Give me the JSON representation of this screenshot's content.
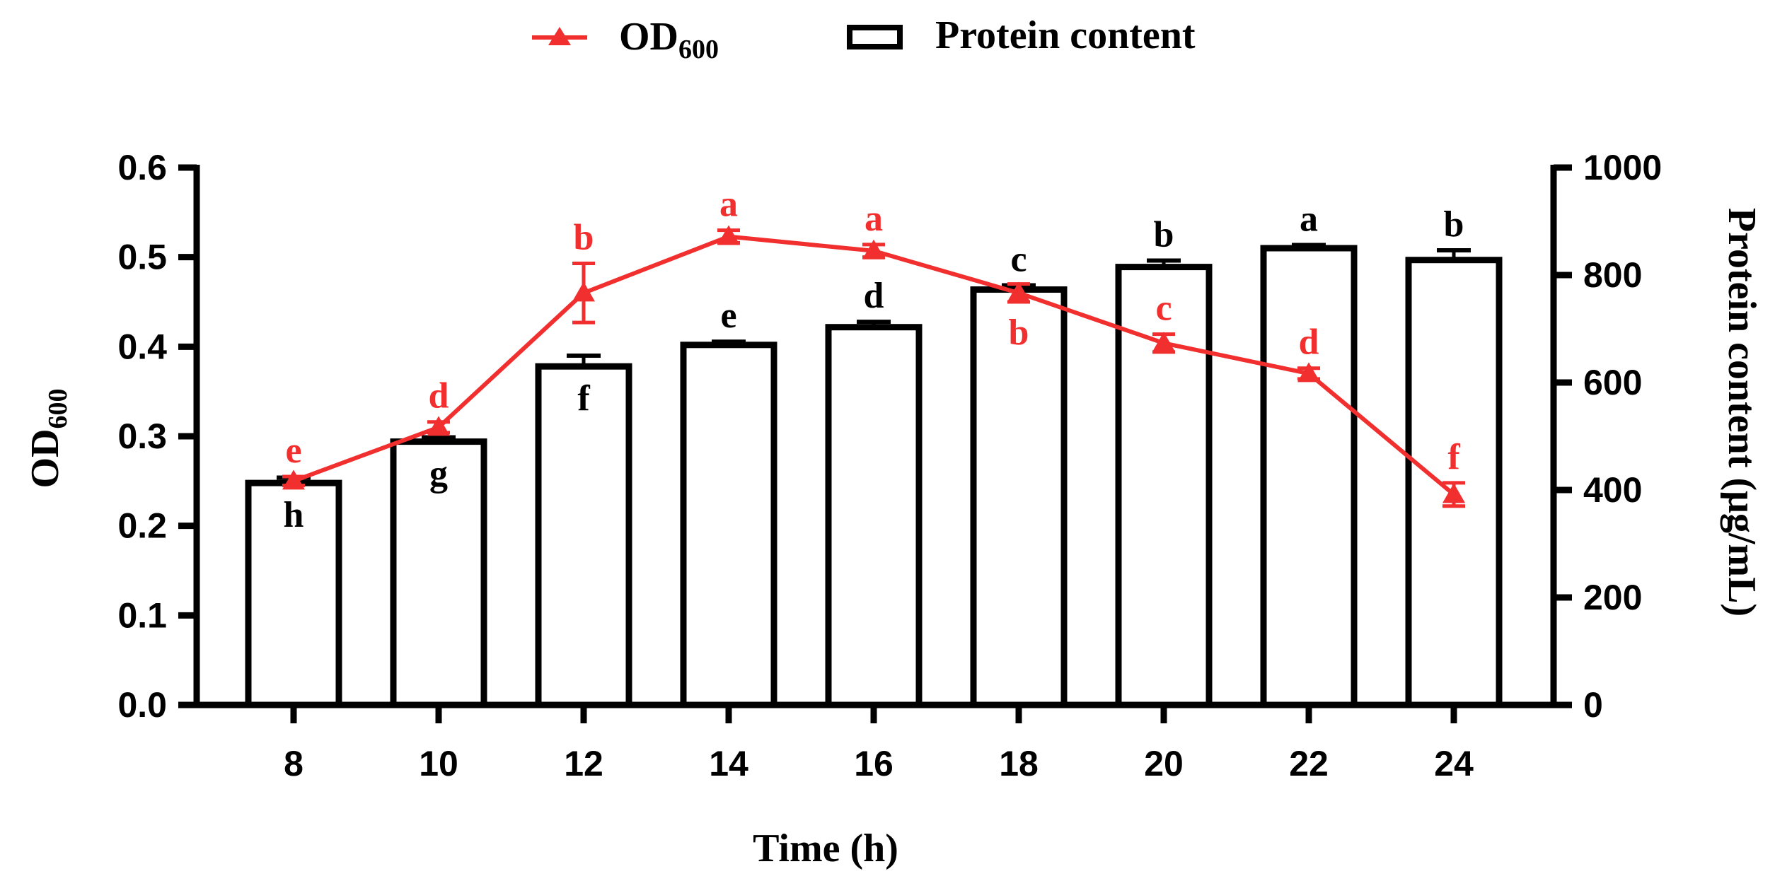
{
  "chart_data": {
    "type": "bar",
    "title": "",
    "xlabel": "Time (h)",
    "ylabel_left": "OD",
    "ylabel_left_sub": "600",
    "ylabel_right": "Protein content (μg/mL)",
    "categories": [
      "8",
      "10",
      "12",
      "14",
      "16",
      "18",
      "20",
      "22",
      "24"
    ],
    "y_left": {
      "min": 0,
      "max": 0.6,
      "ticks": [
        0.0,
        0.1,
        0.2,
        0.3,
        0.4,
        0.5,
        0.6
      ],
      "tick_labels": [
        "0.0",
        "0.1",
        "0.2",
        "0.3",
        "0.4",
        "0.5",
        "0.6"
      ]
    },
    "y_right": {
      "min": 0,
      "max": 1000,
      "ticks": [
        0,
        200,
        400,
        600,
        800,
        1000
      ],
      "tick_labels": [
        "0",
        "200",
        "400",
        "600",
        "800",
        "1000"
      ]
    },
    "legend": {
      "placement": "top-center",
      "items": [
        {
          "label": "OD",
          "sub": "600",
          "kind": "line-triangle"
        },
        {
          "label": "Protein content",
          "kind": "bar"
        }
      ]
    },
    "series": [
      {
        "name": "Protein content",
        "kind": "bar",
        "axis": "right",
        "color": "#000000",
        "values": [
          413,
          490,
          630,
          670,
          703,
          773,
          815,
          850,
          828
        ],
        "errors": [
          10,
          8,
          20,
          6,
          10,
          8,
          12,
          6,
          18
        ],
        "letters": [
          "h",
          "g",
          "f",
          "e",
          "d",
          "c",
          "b",
          "a",
          "b"
        ]
      },
      {
        "name": "OD600",
        "kind": "line",
        "axis": "left",
        "color": "#f22f2f",
        "values": [
          0.25,
          0.31,
          0.46,
          0.523,
          0.507,
          0.46,
          0.404,
          0.37,
          0.235
        ],
        "errors": [
          0.005,
          0.006,
          0.033,
          0.007,
          0.007,
          0.01,
          0.01,
          0.006,
          0.013
        ],
        "letters": [
          "e",
          "d",
          "b",
          "a",
          "a",
          "b",
          "c",
          "d",
          "f"
        ]
      }
    ]
  }
}
